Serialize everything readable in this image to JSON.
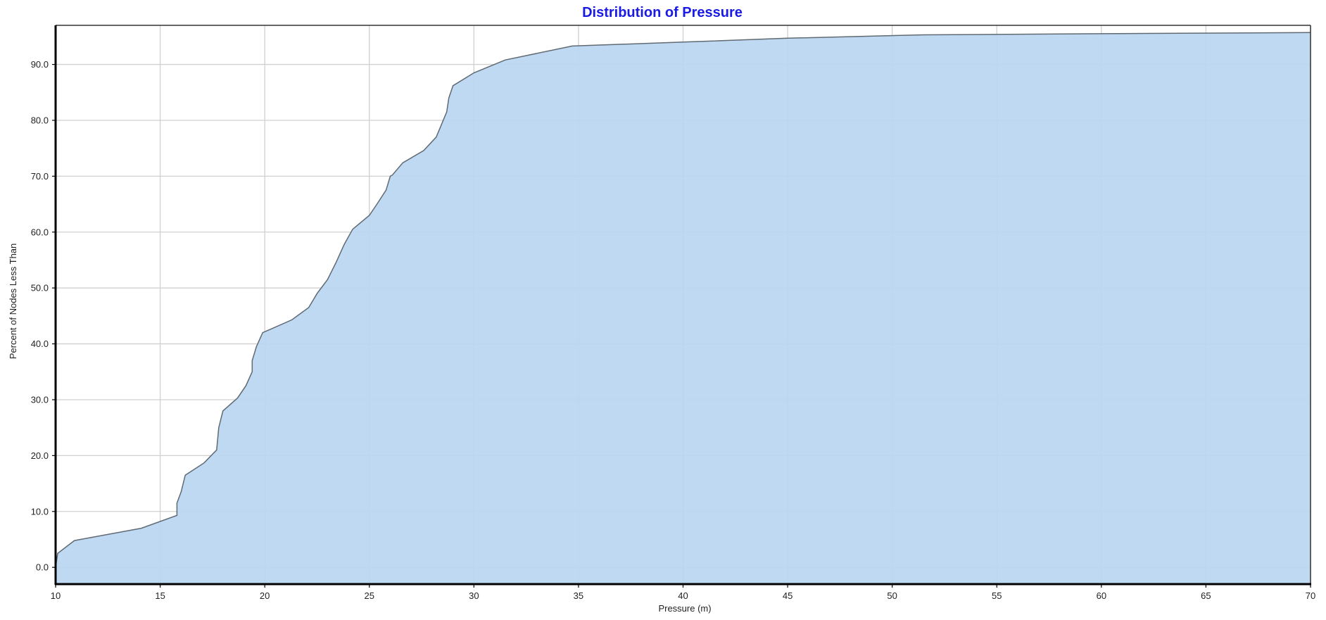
{
  "chart_data": {
    "type": "area",
    "title": "Distribution of Pressure",
    "xlabel": "Pressure (m)",
    "ylabel": "Percent of Nodes Less Than",
    "xlim": [
      10,
      70
    ],
    "ylim": [
      -3,
      97
    ],
    "x_ticks": [
      10,
      15,
      20,
      25,
      30,
      35,
      40,
      45,
      50,
      55,
      60,
      65,
      70
    ],
    "x_tick_labels": [
      "10",
      "15",
      "20",
      "25",
      "30",
      "35",
      "40",
      "45",
      "50",
      "55",
      "60",
      "65",
      "70"
    ],
    "y_ticks": [
      0,
      10,
      20,
      30,
      40,
      50,
      60,
      70,
      80,
      90
    ],
    "y_tick_labels": [
      "0.0",
      "10.0",
      "20.0",
      "30.0",
      "40.0",
      "50.0",
      "60.0",
      "70.0",
      "80.0",
      "90.0"
    ],
    "grid": true,
    "legend": false,
    "colors": {
      "fill": "#bad6f2",
      "line": "#5f6a72",
      "title": "#1a1ae6",
      "grid": "#d0d0d0",
      "axis": "#000000"
    },
    "series": [
      {
        "x": [
          10.0,
          10.1,
          10.9,
          14.1,
          15.8,
          15.8,
          16.0,
          16.2,
          17.1,
          17.7,
          17.8,
          18.0,
          18.7,
          19.1,
          19.4,
          19.4,
          19.6,
          19.9,
          21.3,
          22.1,
          22.5,
          23.0,
          23.4,
          23.8,
          24.2,
          25.0,
          25.4,
          25.8,
          26.0,
          26.1,
          26.6,
          27.6,
          28.2,
          28.7,
          28.8,
          29.0,
          30.0,
          31.5,
          34.7,
          40.0,
          45.0,
          51.5,
          60.0,
          70.0
        ],
        "y": [
          0.0,
          2.5,
          4.8,
          7.0,
          9.3,
          11.5,
          13.5,
          16.5,
          18.7,
          21.0,
          25.0,
          28.0,
          30.3,
          32.5,
          35.0,
          37.0,
          39.5,
          42.0,
          44.3,
          46.5,
          49.0,
          51.5,
          54.5,
          57.8,
          60.5,
          63.0,
          65.2,
          67.5,
          70.0,
          70.2,
          72.4,
          74.6,
          77.0,
          81.5,
          84.0,
          86.2,
          88.5,
          90.8,
          93.3,
          94.0,
          94.7,
          95.3,
          95.5,
          95.7
        ]
      }
    ]
  }
}
